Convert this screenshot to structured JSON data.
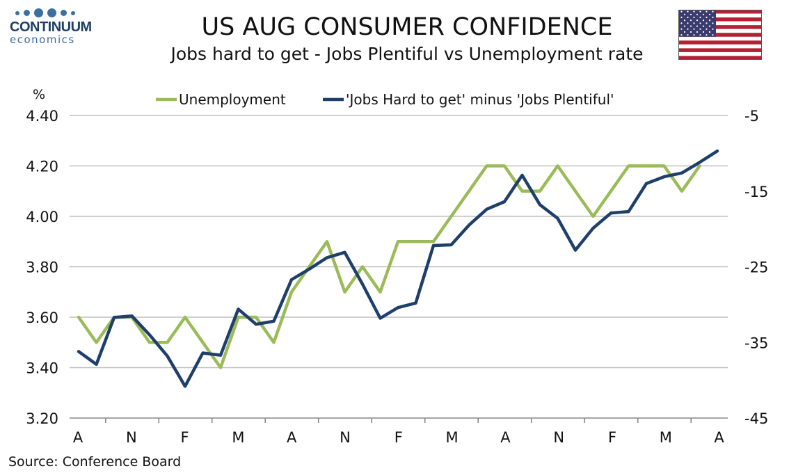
{
  "logo": {
    "name": "CONTINUUM",
    "sub": "economics"
  },
  "title": "US AUG CONSUMER CONFIDENCE",
  "subtitle": "Jobs hard to get - Jobs Plentiful vs Unemployment rate",
  "source": "Source: Conference Board",
  "colors": {
    "unemployment": "#9bbb59",
    "jobs": "#1f3f6b",
    "grid": "#bfbfbf",
    "axis": "#888888"
  },
  "chart_data": {
    "type": "line",
    "left_axis_unit": "%",
    "ylim_left": [
      3.2,
      4.4
    ],
    "ylim_right": [
      -45,
      -5
    ],
    "left_ticks": [
      "4.40",
      "4.20",
      "4.00",
      "3.80",
      "3.60",
      "3.40",
      "3.20"
    ],
    "right_ticks": [
      "-5",
      "-15",
      "-25",
      "-35",
      "-45"
    ],
    "x_labels": [
      "A",
      "N",
      "F",
      "M",
      "A",
      "N",
      "F",
      "M",
      "A",
      "N",
      "F",
      "M",
      "A"
    ],
    "legend_position": "top",
    "grid": true,
    "series": [
      {
        "name": "Unemployment",
        "axis": "left",
        "values": [
          3.6,
          3.5,
          3.6,
          3.6,
          3.5,
          3.5,
          3.6,
          3.5,
          3.4,
          3.6,
          3.6,
          3.5,
          3.7,
          3.8,
          3.9,
          3.7,
          3.8,
          3.7,
          3.9,
          3.9,
          3.9,
          4.0,
          4.1,
          4.2,
          4.2,
          4.1,
          4.1,
          4.2,
          4.1,
          4.0,
          4.1,
          4.2,
          4.2,
          4.2,
          4.1,
          4.2
        ]
      },
      {
        "name": "'Jobs Hard to get' minus 'Jobs Plentiful'",
        "axis": "right",
        "values": [
          -36.2,
          -37.9,
          -31.7,
          -31.5,
          -34.0,
          -36.8,
          -40.8,
          -36.4,
          -36.7,
          -30.6,
          -32.6,
          -32.2,
          -26.7,
          -25.3,
          -23.8,
          -23.1,
          -27.3,
          -31.8,
          -30.4,
          -29.8,
          -22.2,
          -22.1,
          -19.5,
          -17.4,
          -16.4,
          -12.9,
          -16.8,
          -18.6,
          -22.8,
          -19.9,
          -17.9,
          -17.7,
          -14.0,
          -13.1,
          -12.6,
          -11.2,
          -9.7
        ]
      }
    ]
  }
}
